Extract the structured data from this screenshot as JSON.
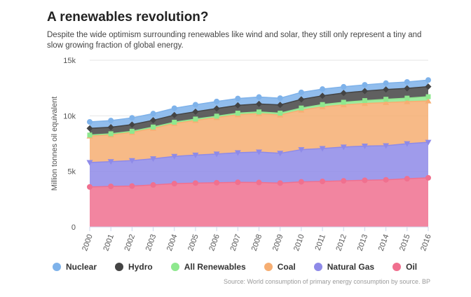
{
  "title": "A renewables revolution?",
  "subtitle": "Despite the wide optimism surrounding renewables like wind and solar, they still only represent a tiny and slow growing fraction of global energy.",
  "source": "Source: World consumption of primary energy consumption by source. BP",
  "chart_data": {
    "type": "area",
    "stacked": true,
    "x": [
      "2000",
      "2001",
      "2002",
      "2003",
      "2004",
      "2005",
      "2006",
      "2007",
      "2008",
      "2009",
      "2010",
      "2011",
      "2012",
      "2013",
      "2014",
      "2015",
      "2016"
    ],
    "ylabel": "Million tonnes oil equivalent",
    "ylim": [
      0,
      15000
    ],
    "yticks": [
      0,
      5000,
      10000,
      15000
    ],
    "ytick_labels": [
      "0",
      "5k",
      "10k",
      "15k"
    ],
    "grid": true,
    "legend_position": "bottom",
    "series": [
      {
        "name": "Oil",
        "color": "#f0708f",
        "values": [
          3600,
          3650,
          3680,
          3780,
          3900,
          3950,
          3980,
          4020,
          4000,
          3950,
          4060,
          4100,
          4150,
          4200,
          4240,
          4340,
          4420
        ]
      },
      {
        "name": "Natural Gas",
        "color": "#8e8ae8",
        "values": [
          2200,
          2230,
          2290,
          2360,
          2450,
          2520,
          2580,
          2660,
          2740,
          2680,
          2900,
          2960,
          3040,
          3080,
          3070,
          3150,
          3200
        ]
      },
      {
        "name": "Coal",
        "color": "#f6ae72",
        "values": [
          2380,
          2410,
          2540,
          2740,
          2960,
          3120,
          3280,
          3420,
          3460,
          3450,
          3560,
          3750,
          3800,
          3830,
          3880,
          3780,
          3720
        ]
      },
      {
        "name": "All Renewables",
        "color": "#8ee88e",
        "values": [
          90,
          95,
          100,
          110,
          115,
          120,
          130,
          140,
          150,
          160,
          180,
          205,
          230,
          260,
          300,
          320,
          380
        ]
      },
      {
        "name": "Hydro",
        "color": "#444444",
        "values": [
          600,
          590,
          600,
          610,
          640,
          660,
          690,
          700,
          720,
          740,
          780,
          790,
          830,
          860,
          880,
          880,
          910
        ]
      },
      {
        "name": "Nuclear",
        "color": "#7eb2ea",
        "values": [
          580,
          600,
          610,
          600,
          620,
          630,
          630,
          620,
          620,
          610,
          630,
          600,
          560,
          560,
          570,
          580,
          590
        ]
      }
    ]
  },
  "legend_order": [
    "Nuclear",
    "Hydro",
    "All Renewables",
    "Coal",
    "Natural Gas",
    "Oil"
  ]
}
